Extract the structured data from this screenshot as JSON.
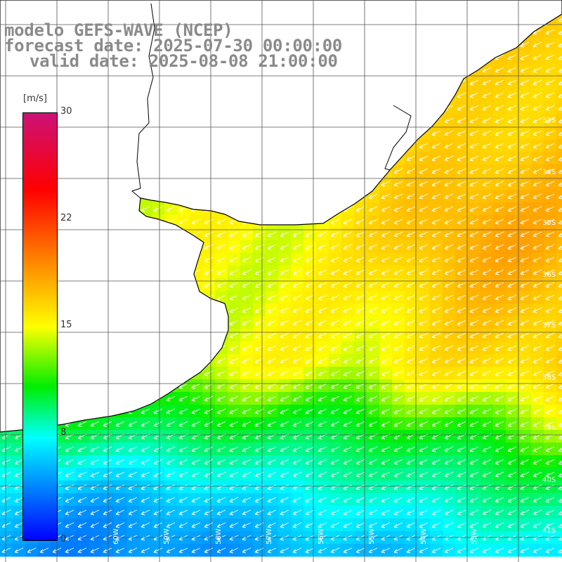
{
  "header": {
    "line1": "modelo GEFS-WAVE (NCEP)",
    "line2": "forecast date: 2025-07-30 00:00:00",
    "line3": "valid date: 2025-08-08 21:00:00"
  },
  "colorbar": {
    "unit": "[m/s]",
    "ticks": [
      "30",
      "22",
      "15",
      "8",
      "0"
    ],
    "colors": [
      "#cc1177",
      "#ff0000",
      "#ff8800",
      "#ffff00",
      "#00ee00",
      "#00ffff",
      "#0000ff"
    ]
  },
  "map": {
    "lat_labels": [
      "33S",
      "34S",
      "35S",
      "36S",
      "37S",
      "38S",
      "39S",
      "40S",
      "41S"
    ],
    "lon_labels": [
      "60W",
      "59W",
      "58W",
      "57W",
      "56W",
      "55W",
      "54W",
      "53W"
    ],
    "land_color": "#ffffff",
    "coast_color": "#000000",
    "grid_color": "#555555",
    "arrow_color": "#ffffff"
  }
}
